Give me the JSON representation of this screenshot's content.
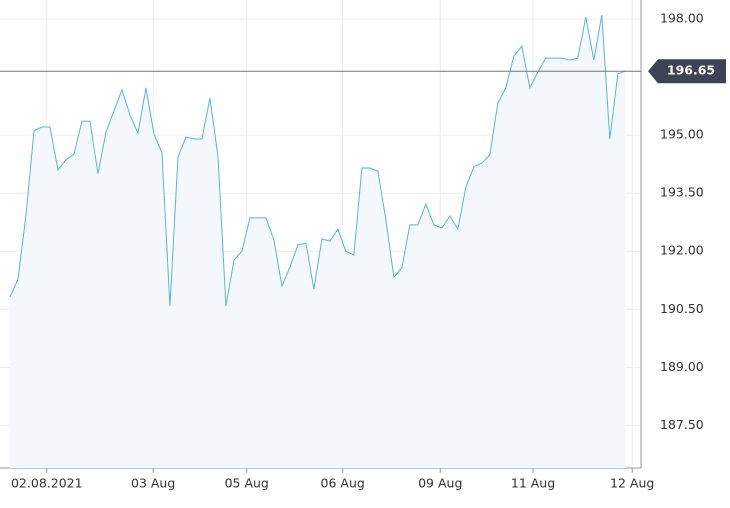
{
  "chart_data": {
    "type": "line",
    "x": [
      0,
      1,
      2,
      3,
      4,
      5,
      6,
      7,
      8,
      9,
      10,
      11,
      12,
      13,
      14,
      15,
      16,
      17,
      18,
      19,
      20,
      21,
      22,
      23,
      24,
      25,
      26,
      27,
      28,
      29,
      30,
      31,
      32,
      33,
      34,
      35,
      36,
      37,
      38,
      39,
      40,
      41,
      42,
      43,
      44,
      45,
      46,
      47,
      48,
      49,
      50,
      51,
      52,
      53,
      54,
      55,
      56,
      57,
      58,
      59,
      60,
      61,
      62,
      63,
      64,
      65,
      66,
      67,
      68,
      69,
      70,
      71,
      72,
      73,
      74,
      75,
      76,
      77
    ],
    "series": [
      {
        "color": "#5ab4dc",
        "values": [
          190.82,
          191.28,
          192.94,
          195.11,
          195.21,
          195.21,
          194.1,
          194.36,
          194.51,
          195.36,
          195.36,
          194.0,
          195.08,
          195.62,
          196.17,
          195.52,
          195.05,
          196.22,
          195.03,
          194.54,
          190.58,
          194.43,
          194.95,
          194.9,
          194.9,
          195.96,
          194.46,
          190.58,
          191.77,
          192.0,
          192.86,
          192.86,
          192.86,
          192.29,
          191.1,
          191.59,
          192.16,
          192.21,
          191.02,
          192.32,
          192.26,
          192.57,
          192.0,
          191.9,
          194.15,
          194.15,
          194.07,
          192.81,
          191.33,
          191.57,
          192.68,
          192.68,
          193.22,
          192.68,
          192.6,
          192.91,
          192.57,
          193.66,
          194.18,
          194.28,
          194.49,
          195.83,
          196.22,
          197.04,
          197.3,
          196.22,
          196.63,
          196.99,
          196.99,
          196.99,
          196.94,
          196.99,
          198.05,
          196.94,
          198.1,
          194.9,
          196.58,
          196.66
        ]
      }
    ],
    "xlim": [
      0,
      78.9
    ],
    "xticks": [
      {
        "value": 4.6,
        "label": "02.08.2021"
      },
      {
        "value": 17.9,
        "label": "03 Aug"
      },
      {
        "value": 29.6,
        "label": "05 Aug"
      },
      {
        "value": 41.6,
        "label": "06 Aug"
      },
      {
        "value": 53.8,
        "label": "09 Aug"
      },
      {
        "value": 65.4,
        "label": "11 Aug"
      },
      {
        "value": 77.8,
        "label": "12 Aug"
      }
    ],
    "ylim": [
      186.4,
      198.49
    ],
    "yticks": [
      {
        "value": 187.5,
        "label": "187.50"
      },
      {
        "value": 189,
        "label": "189.00"
      },
      {
        "value": 190.5,
        "label": "190.50"
      },
      {
        "value": 192,
        "label": "192.00"
      },
      {
        "value": 193.5,
        "label": "193.50"
      },
      {
        "value": 195,
        "label": "195.00"
      },
      {
        "value": 198,
        "label": "198.00"
      }
    ],
    "current_value": 196.65,
    "grid": true
  }
}
